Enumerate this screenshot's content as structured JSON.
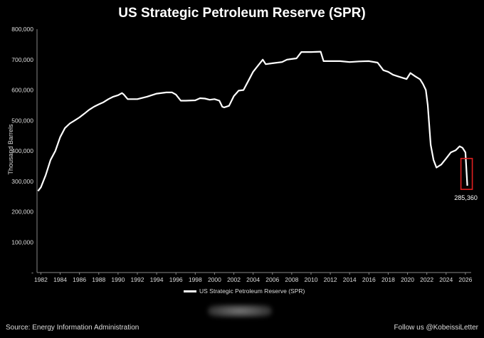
{
  "chart_data": {
    "type": "line",
    "title": "US Strategic Petroleum Reserve (SPR)",
    "ylabel": "Thousand Barrels",
    "xlabel": "",
    "ylim": [
      0,
      800000
    ],
    "xlim": [
      1981.6,
      2026.6
    ],
    "grid": false,
    "legend_placement": "bottom-center",
    "line_color": "#ffffff",
    "highlight_color": "#e02020",
    "y_ticks": [
      "-",
      "100,000",
      "200,000",
      "300,000",
      "400,000",
      "500,000",
      "600,000",
      "700,000",
      "800,000"
    ],
    "x_ticks": [
      "1982",
      "1984",
      "1986",
      "1988",
      "1990",
      "1992",
      "1994",
      "1996",
      "1998",
      "2000",
      "2002",
      "2004",
      "2006",
      "2008",
      "2010",
      "2012",
      "2014",
      "2016",
      "2018",
      "2020",
      "2022",
      "2024",
      "2026"
    ],
    "series": [
      {
        "name": "US Strategic Petroleum Reserve (SPR)",
        "x": [
          1981.7,
          1982.0,
          1982.5,
          1983.0,
          1983.5,
          1984.0,
          1984.5,
          1985.0,
          1985.5,
          1986.0,
          1986.5,
          1987.0,
          1987.5,
          1988.0,
          1988.5,
          1989.0,
          1989.5,
          1990.0,
          1990.4,
          1990.6,
          1991.0,
          1992.0,
          1993.0,
          1994.0,
          1995.0,
          1995.6,
          1996.0,
          1996.5,
          1997.0,
          1998.0,
          1998.5,
          1999.0,
          1999.5,
          2000.0,
          2000.5,
          2000.8,
          2001.0,
          2001.5,
          2002.0,
          2002.5,
          2003.0,
          2003.5,
          2004.0,
          2004.5,
          2005.0,
          2005.3,
          2006.0,
          2007.0,
          2007.5,
          2008.0,
          2008.5,
          2009.0,
          2010.0,
          2011.0,
          2011.3,
          2012.0,
          2013.0,
          2014.0,
          2015.0,
          2016.0,
          2016.9,
          2017.5,
          2018.0,
          2018.5,
          2019.0,
          2019.5,
          2019.9,
          2020.3,
          2020.8,
          2021.3,
          2021.6,
          2021.9,
          2022.1,
          2022.4,
          2022.7,
          2023.0,
          2023.5,
          2024.0,
          2024.5,
          2025.0,
          2025.4,
          2025.7,
          2026.0,
          2026.2
        ],
        "y": [
          268000,
          280000,
          320000,
          370000,
          400000,
          445000,
          475000,
          490000,
          500000,
          510000,
          522000,
          535000,
          545000,
          553000,
          560000,
          570000,
          578000,
          583000,
          590000,
          585000,
          570000,
          570000,
          578000,
          588000,
          592000,
          592000,
          585000,
          565000,
          565000,
          566000,
          573000,
          572000,
          568000,
          570000,
          565000,
          545000,
          543000,
          548000,
          580000,
          598000,
          600000,
          630000,
          660000,
          680000,
          700000,
          685000,
          688000,
          692000,
          700000,
          702000,
          704000,
          725000,
          725000,
          726000,
          695000,
          695000,
          695000,
          692000,
          694000,
          695000,
          690000,
          665000,
          660000,
          650000,
          645000,
          640000,
          636000,
          656000,
          645000,
          635000,
          620000,
          600000,
          550000,
          420000,
          370000,
          345000,
          355000,
          375000,
          395000,
          402000,
          415000,
          410000,
          395000,
          285360
        ]
      }
    ],
    "annotations": [
      {
        "text": "285,360",
        "x": 2026.2,
        "y": 285360
      }
    ]
  },
  "footer": {
    "source": "Source: Energy Information Administration",
    "credit": "Follow us @KobeissiLetter"
  }
}
